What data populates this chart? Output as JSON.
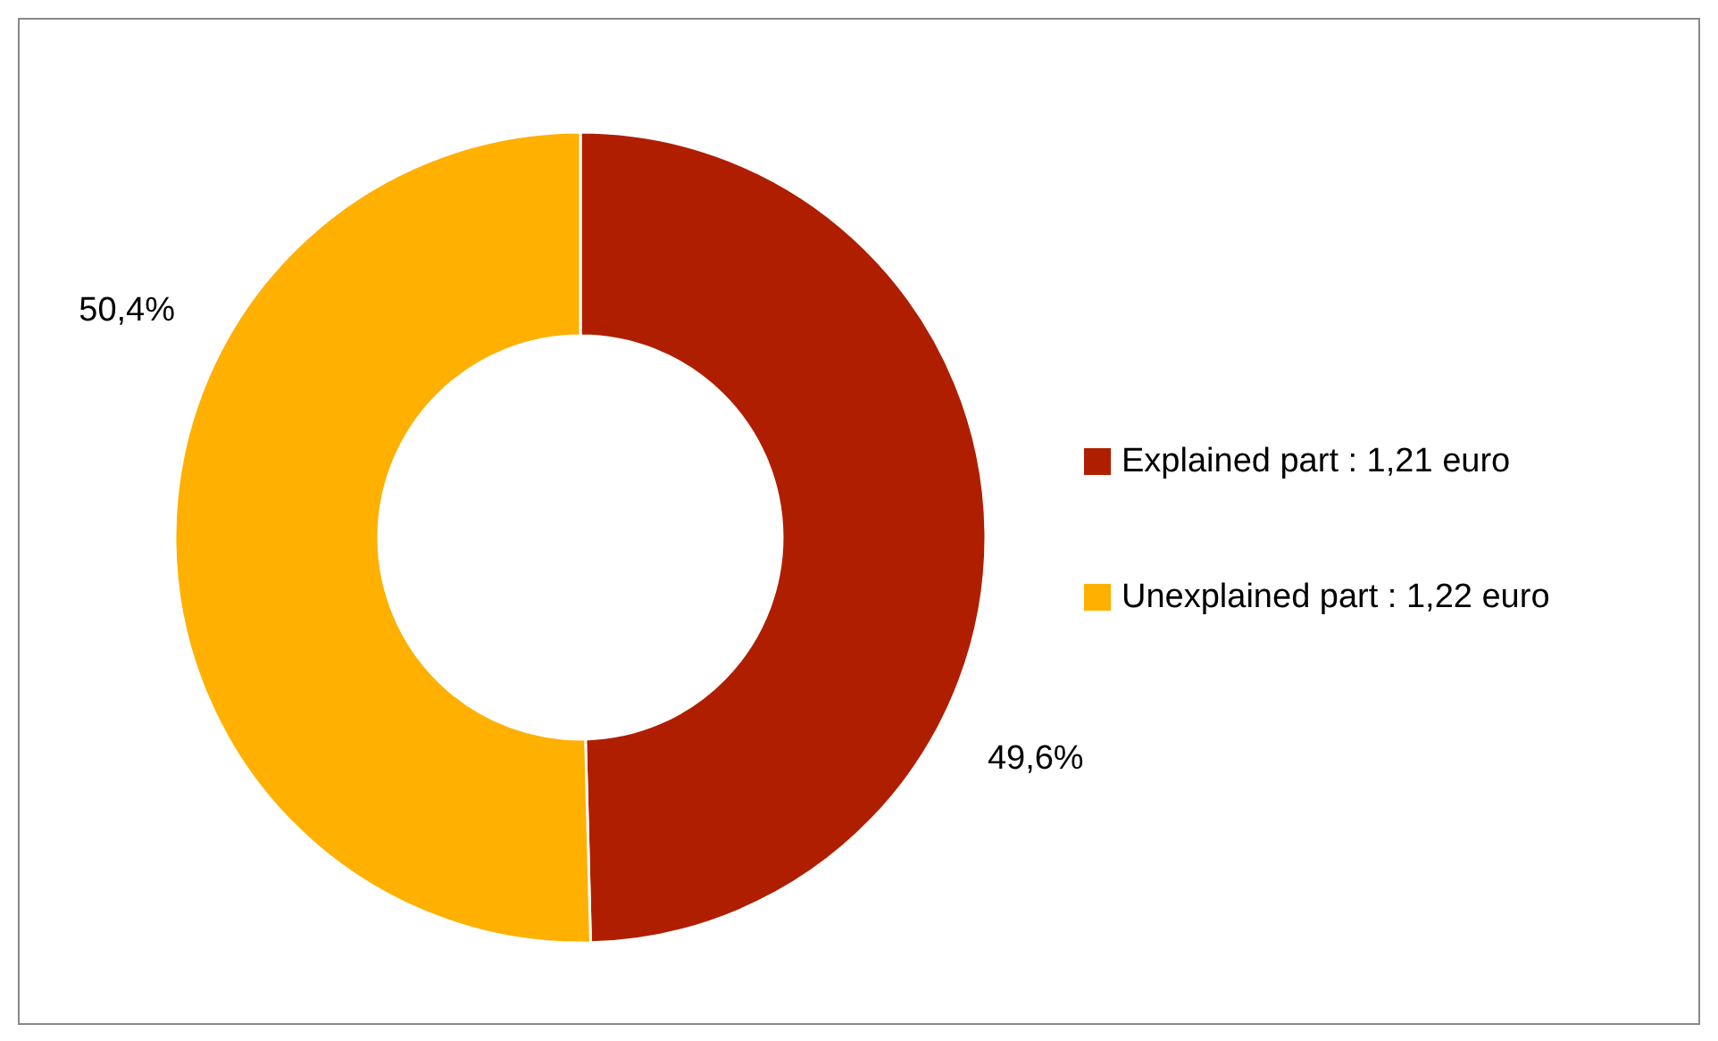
{
  "chart_data": {
    "type": "donut",
    "categories": [
      "Explained part : 1,21 euro",
      "Unexplained part : 1,22 euro"
    ],
    "values": [
      49.6,
      50.4
    ],
    "colors": [
      "#b01e00",
      "#ffb000"
    ],
    "value_labels": [
      "49,6%",
      "50,4%"
    ],
    "legend": "right"
  }
}
